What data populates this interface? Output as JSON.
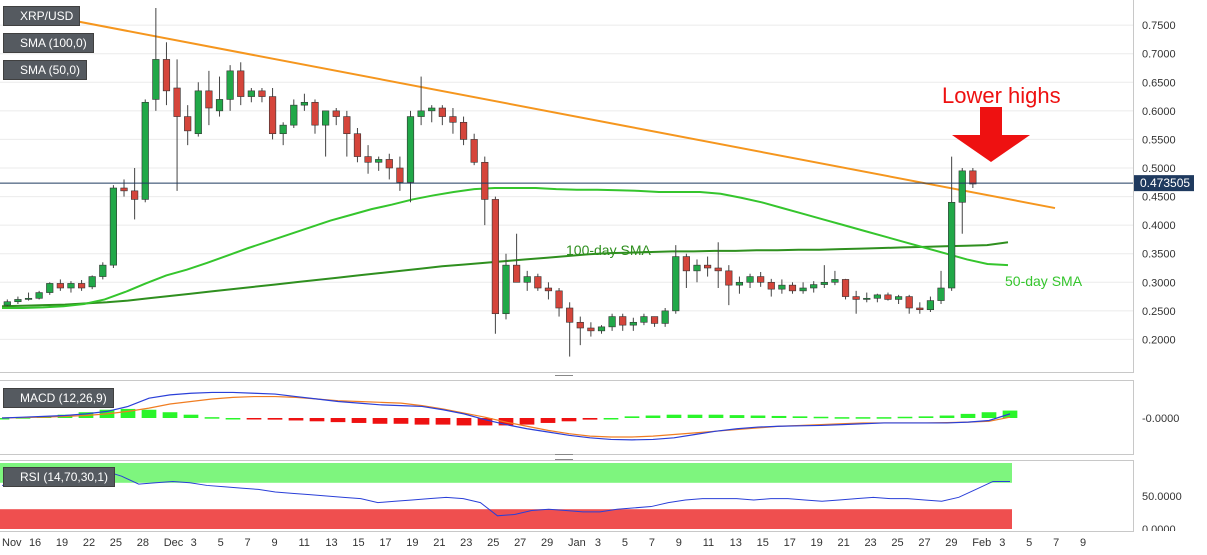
{
  "symbol": "XRP/USD",
  "indicators": {
    "sma100": "SMA (100,0)",
    "sma50": "SMA (50,0)",
    "macd": "MACD (12,26,9)",
    "rsi": "RSI (14,70,30,1)"
  },
  "annotations": {
    "lower_highs": "Lower highs",
    "sma100_label": "100-day SMA",
    "sma50_label": "50-day SMA"
  },
  "current_price": "0.473505",
  "colors": {
    "up": "#21a848",
    "down": "#d5453b",
    "trendline": "#f5961e",
    "sma50": "#35c52d",
    "sma100": "#2f8f1f",
    "arrow": "#ee1111",
    "macd_line": "#2a3fd8",
    "signal_line": "#f07d22",
    "hist_pos": "#2af52a",
    "hist_neg": "#ee1111",
    "rsi_line": "#2a3fd8",
    "rsi_ob": "#7ef57e",
    "rsi_os": "#ef4f4f",
    "price_tag": "#1f3a5f"
  },
  "x_axis": {
    "labels": [
      "Nov",
      "16",
      "19",
      "22",
      "25",
      "28",
      "Dec",
      "3",
      "5",
      "7",
      "9",
      "11",
      "13",
      "15",
      "17",
      "19",
      "21",
      "23",
      "25",
      "27",
      "29",
      "Jan",
      "3",
      "5",
      "7",
      "9",
      "11",
      "13",
      "15",
      "17",
      "19",
      "21",
      "23",
      "25",
      "27",
      "29",
      "Feb",
      "3",
      "5",
      "7",
      "9"
    ]
  },
  "chart_data": [
    {
      "type": "candlestick",
      "title": "XRP/USD",
      "ylim": [
        0.15,
        0.78
      ],
      "y_ticks": [
        "0.7500",
        "0.7000",
        "0.6500",
        "0.6000",
        "0.5500",
        "0.5000",
        "0.4500",
        "0.4000",
        "0.3500",
        "0.3000",
        "0.2500",
        "0.2000"
      ],
      "candles": [
        [
          0.26,
          0.27,
          0.258,
          0.266
        ],
        [
          0.266,
          0.275,
          0.262,
          0.27
        ],
        [
          0.27,
          0.282,
          0.268,
          0.272
        ],
        [
          0.272,
          0.285,
          0.27,
          0.282
        ],
        [
          0.282,
          0.3,
          0.278,
          0.298
        ],
        [
          0.298,
          0.305,
          0.285,
          0.29
        ],
        [
          0.29,
          0.302,
          0.282,
          0.298
        ],
        [
          0.298,
          0.304,
          0.285,
          0.29
        ],
        [
          0.292,
          0.312,
          0.288,
          0.31
        ],
        [
          0.31,
          0.335,
          0.305,
          0.33
        ],
        [
          0.33,
          0.47,
          0.325,
          0.465
        ],
        [
          0.465,
          0.48,
          0.45,
          0.46
        ],
        [
          0.46,
          0.5,
          0.41,
          0.445
        ],
        [
          0.445,
          0.62,
          0.44,
          0.615
        ],
        [
          0.62,
          0.78,
          0.6,
          0.69
        ],
        [
          0.69,
          0.72,
          0.61,
          0.635
        ],
        [
          0.64,
          0.69,
          0.46,
          0.59
        ],
        [
          0.59,
          0.61,
          0.54,
          0.565
        ],
        [
          0.56,
          0.65,
          0.555,
          0.635
        ],
        [
          0.635,
          0.67,
          0.575,
          0.605
        ],
        [
          0.6,
          0.66,
          0.59,
          0.62
        ],
        [
          0.62,
          0.68,
          0.6,
          0.67
        ],
        [
          0.67,
          0.685,
          0.61,
          0.625
        ],
        [
          0.625,
          0.64,
          0.615,
          0.635
        ],
        [
          0.635,
          0.64,
          0.615,
          0.625
        ],
        [
          0.625,
          0.64,
          0.55,
          0.56
        ],
        [
          0.56,
          0.58,
          0.54,
          0.575
        ],
        [
          0.575,
          0.62,
          0.57,
          0.61
        ],
        [
          0.61,
          0.63,
          0.6,
          0.615
        ],
        [
          0.615,
          0.62,
          0.56,
          0.575
        ],
        [
          0.575,
          0.6,
          0.52,
          0.6
        ],
        [
          0.6,
          0.605,
          0.575,
          0.59
        ],
        [
          0.59,
          0.6,
          0.52,
          0.56
        ],
        [
          0.56,
          0.57,
          0.51,
          0.52
        ],
        [
          0.52,
          0.54,
          0.49,
          0.51
        ],
        [
          0.51,
          0.52,
          0.495,
          0.515
        ],
        [
          0.515,
          0.525,
          0.48,
          0.5
        ],
        [
          0.5,
          0.52,
          0.46,
          0.475
        ],
        [
          0.475,
          0.6,
          0.44,
          0.59
        ],
        [
          0.59,
          0.66,
          0.575,
          0.6
        ],
        [
          0.6,
          0.61,
          0.58,
          0.605
        ],
        [
          0.605,
          0.61,
          0.575,
          0.59
        ],
        [
          0.59,
          0.605,
          0.56,
          0.58
        ],
        [
          0.58,
          0.59,
          0.54,
          0.55
        ],
        [
          0.55,
          0.56,
          0.505,
          0.51
        ],
        [
          0.51,
          0.52,
          0.4,
          0.445
        ],
        [
          0.445,
          0.45,
          0.21,
          0.245
        ],
        [
          0.245,
          0.35,
          0.235,
          0.33
        ],
        [
          0.33,
          0.385,
          0.3,
          0.3
        ],
        [
          0.3,
          0.32,
          0.285,
          0.31
        ],
        [
          0.31,
          0.315,
          0.285,
          0.29
        ],
        [
          0.29,
          0.3,
          0.27,
          0.285
        ],
        [
          0.285,
          0.29,
          0.24,
          0.255
        ],
        [
          0.255,
          0.265,
          0.17,
          0.23
        ],
        [
          0.23,
          0.24,
          0.19,
          0.22
        ],
        [
          0.22,
          0.23,
          0.205,
          0.215
        ],
        [
          0.215,
          0.225,
          0.21,
          0.222
        ],
        [
          0.222,
          0.245,
          0.215,
          0.24
        ],
        [
          0.24,
          0.245,
          0.215,
          0.225
        ],
        [
          0.225,
          0.238,
          0.215,
          0.23
        ],
        [
          0.23,
          0.245,
          0.225,
          0.24
        ],
        [
          0.24,
          0.24,
          0.222,
          0.228
        ],
        [
          0.228,
          0.255,
          0.222,
          0.25
        ],
        [
          0.25,
          0.365,
          0.245,
          0.345
        ],
        [
          0.345,
          0.35,
          0.29,
          0.32
        ],
        [
          0.32,
          0.34,
          0.3,
          0.33
        ],
        [
          0.33,
          0.345,
          0.31,
          0.325
        ],
        [
          0.325,
          0.37,
          0.29,
          0.32
        ],
        [
          0.32,
          0.33,
          0.26,
          0.295
        ],
        [
          0.295,
          0.31,
          0.28,
          0.3
        ],
        [
          0.3,
          0.315,
          0.29,
          0.31
        ],
        [
          0.31,
          0.318,
          0.292,
          0.3
        ],
        [
          0.3,
          0.306,
          0.275,
          0.288
        ],
        [
          0.288,
          0.305,
          0.28,
          0.295
        ],
        [
          0.295,
          0.3,
          0.28,
          0.285
        ],
        [
          0.285,
          0.3,
          0.28,
          0.29
        ],
        [
          0.29,
          0.302,
          0.282,
          0.296
        ],
        [
          0.296,
          0.33,
          0.29,
          0.3
        ],
        [
          0.3,
          0.32,
          0.295,
          0.305
        ],
        [
          0.305,
          0.306,
          0.27,
          0.275
        ],
        [
          0.275,
          0.285,
          0.245,
          0.27
        ],
        [
          0.27,
          0.282,
          0.265,
          0.272
        ],
        [
          0.272,
          0.28,
          0.265,
          0.278
        ],
        [
          0.278,
          0.282,
          0.268,
          0.27
        ],
        [
          0.27,
          0.278,
          0.262,
          0.275
        ],
        [
          0.275,
          0.278,
          0.245,
          0.255
        ],
        [
          0.255,
          0.265,
          0.245,
          0.252
        ],
        [
          0.252,
          0.275,
          0.248,
          0.268
        ],
        [
          0.268,
          0.32,
          0.262,
          0.29
        ],
        [
          0.29,
          0.52,
          0.285,
          0.44
        ],
        [
          0.44,
          0.5,
          0.385,
          0.495
        ],
        [
          0.495,
          0.5,
          0.465,
          0.472
        ]
      ],
      "sma100": [
        0.258,
        0.259,
        0.26,
        0.261,
        0.263,
        0.265,
        0.268,
        0.272,
        0.276,
        0.28,
        0.284,
        0.288,
        0.292,
        0.296,
        0.3,
        0.304,
        0.308,
        0.312,
        0.316,
        0.32,
        0.324,
        0.328,
        0.331,
        0.334,
        0.337,
        0.34,
        0.343,
        0.346,
        0.349,
        0.351,
        0.352,
        0.353,
        0.354,
        0.354,
        0.355,
        0.355,
        0.356,
        0.356,
        0.357,
        0.357,
        0.358,
        0.359,
        0.36,
        0.361,
        0.362,
        0.363,
        0.364,
        0.365,
        0.37
      ],
      "sma50": [
        0.255,
        0.255,
        0.256,
        0.258,
        0.262,
        0.27,
        0.283,
        0.298,
        0.312,
        0.322,
        0.334,
        0.347,
        0.36,
        0.372,
        0.384,
        0.396,
        0.408,
        0.418,
        0.428,
        0.436,
        0.445,
        0.452,
        0.458,
        0.463,
        0.465,
        0.465,
        0.465,
        0.463,
        0.462,
        0.462,
        0.461,
        0.46,
        0.458,
        0.458,
        0.458,
        0.455,
        0.448,
        0.44,
        0.43,
        0.42,
        0.41,
        0.4,
        0.39,
        0.38,
        0.37,
        0.36,
        0.35,
        0.34,
        0.332,
        0.33
      ],
      "trendline": [
        [
          0.78,
          0
        ],
        [
          0.39,
          110
        ]
      ],
      "current_price": 0.473505
    },
    {
      "type": "macd",
      "title": "MACD (12,26,9)",
      "y_ticks": [
        "-0.0000"
      ],
      "ylim": [
        -0.08,
        0.08
      ],
      "macd": [
        0.0,
        0.002,
        0.004,
        0.006,
        0.01,
        0.016,
        0.028,
        0.048,
        0.056,
        0.06,
        0.062,
        0.062,
        0.06,
        0.058,
        0.052,
        0.046,
        0.04,
        0.036,
        0.032,
        0.03,
        0.028,
        0.02,
        0.01,
        -0.004,
        -0.016,
        -0.026,
        -0.034,
        -0.042,
        -0.048,
        -0.052,
        -0.053,
        -0.052,
        -0.048,
        -0.04,
        -0.032,
        -0.026,
        -0.022,
        -0.02,
        -0.019,
        -0.018,
        -0.016,
        -0.014,
        -0.012,
        -0.012,
        -0.012,
        -0.012,
        -0.01,
        -0.006,
        0.01
      ],
      "signal": [
        0.0,
        0.001,
        0.002,
        0.004,
        0.006,
        0.01,
        0.016,
        0.024,
        0.034,
        0.04,
        0.046,
        0.05,
        0.052,
        0.052,
        0.05,
        0.046,
        0.042,
        0.04,
        0.038,
        0.036,
        0.03,
        0.022,
        0.012,
        0.002,
        -0.01,
        -0.02,
        -0.03,
        -0.038,
        -0.044,
        -0.046,
        -0.046,
        -0.044,
        -0.04,
        -0.036,
        -0.032,
        -0.028,
        -0.024,
        -0.02,
        -0.018,
        -0.016,
        -0.014,
        -0.012,
        -0.012,
        -0.012,
        -0.012,
        -0.011,
        -0.01,
        -0.008,
        0.002
      ],
      "hist": [
        0.0,
        0.002,
        0.004,
        0.008,
        0.014,
        0.02,
        0.022,
        0.02,
        0.014,
        0.008,
        0.002,
        0.0,
        -0.002,
        -0.004,
        -0.006,
        -0.008,
        -0.01,
        -0.012,
        -0.014,
        -0.014,
        -0.016,
        -0.016,
        -0.018,
        -0.018,
        -0.018,
        -0.016,
        -0.012,
        -0.008,
        -0.004,
        0.0,
        0.004,
        0.006,
        0.008,
        0.008,
        0.008,
        0.007,
        0.006,
        0.005,
        0.004,
        0.003,
        0.002,
        0.002,
        0.002,
        0.003,
        0.004,
        0.006,
        0.01,
        0.014,
        0.018
      ]
    },
    {
      "type": "rsi",
      "title": "RSI (14,70,30,1)",
      "y_ticks": [
        "50.0000",
        "0.0000"
      ],
      "ylim": [
        0,
        100
      ],
      "levels": [
        70,
        30
      ],
      "rsi": [
        66,
        70,
        74,
        76,
        84,
        90,
        88,
        80,
        68,
        70,
        72,
        70,
        66,
        64,
        62,
        60,
        56,
        54,
        52,
        50,
        48,
        46,
        40,
        42,
        44,
        46,
        48,
        46,
        40,
        20,
        22,
        28,
        30,
        28,
        26,
        26,
        30,
        32,
        34,
        40,
        44,
        46,
        46,
        46,
        44,
        46,
        46,
        44,
        42,
        44,
        46,
        48,
        46,
        46,
        44,
        42,
        48,
        60,
        72,
        72
      ]
    }
  ]
}
